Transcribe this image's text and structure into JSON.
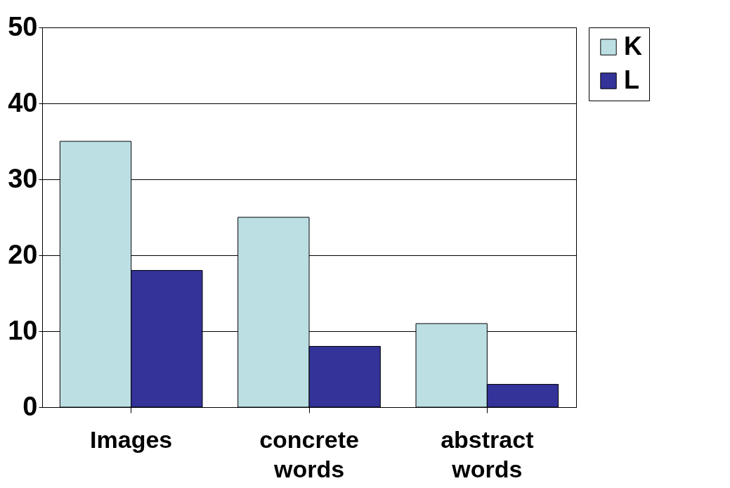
{
  "chart_data": {
    "type": "bar",
    "categories": [
      "Images",
      "concrete words",
      "abstract words"
    ],
    "series": [
      {
        "name": "K",
        "color": "#bcdfe4",
        "values": [
          35,
          25,
          11
        ]
      },
      {
        "name": "L",
        "color": "#333399",
        "values": [
          18,
          8,
          3
        ]
      }
    ],
    "ylim": [
      0,
      50
    ],
    "yticks": [
      0,
      10,
      20,
      30,
      40,
      50
    ],
    "grid": "y",
    "legend": "right"
  }
}
